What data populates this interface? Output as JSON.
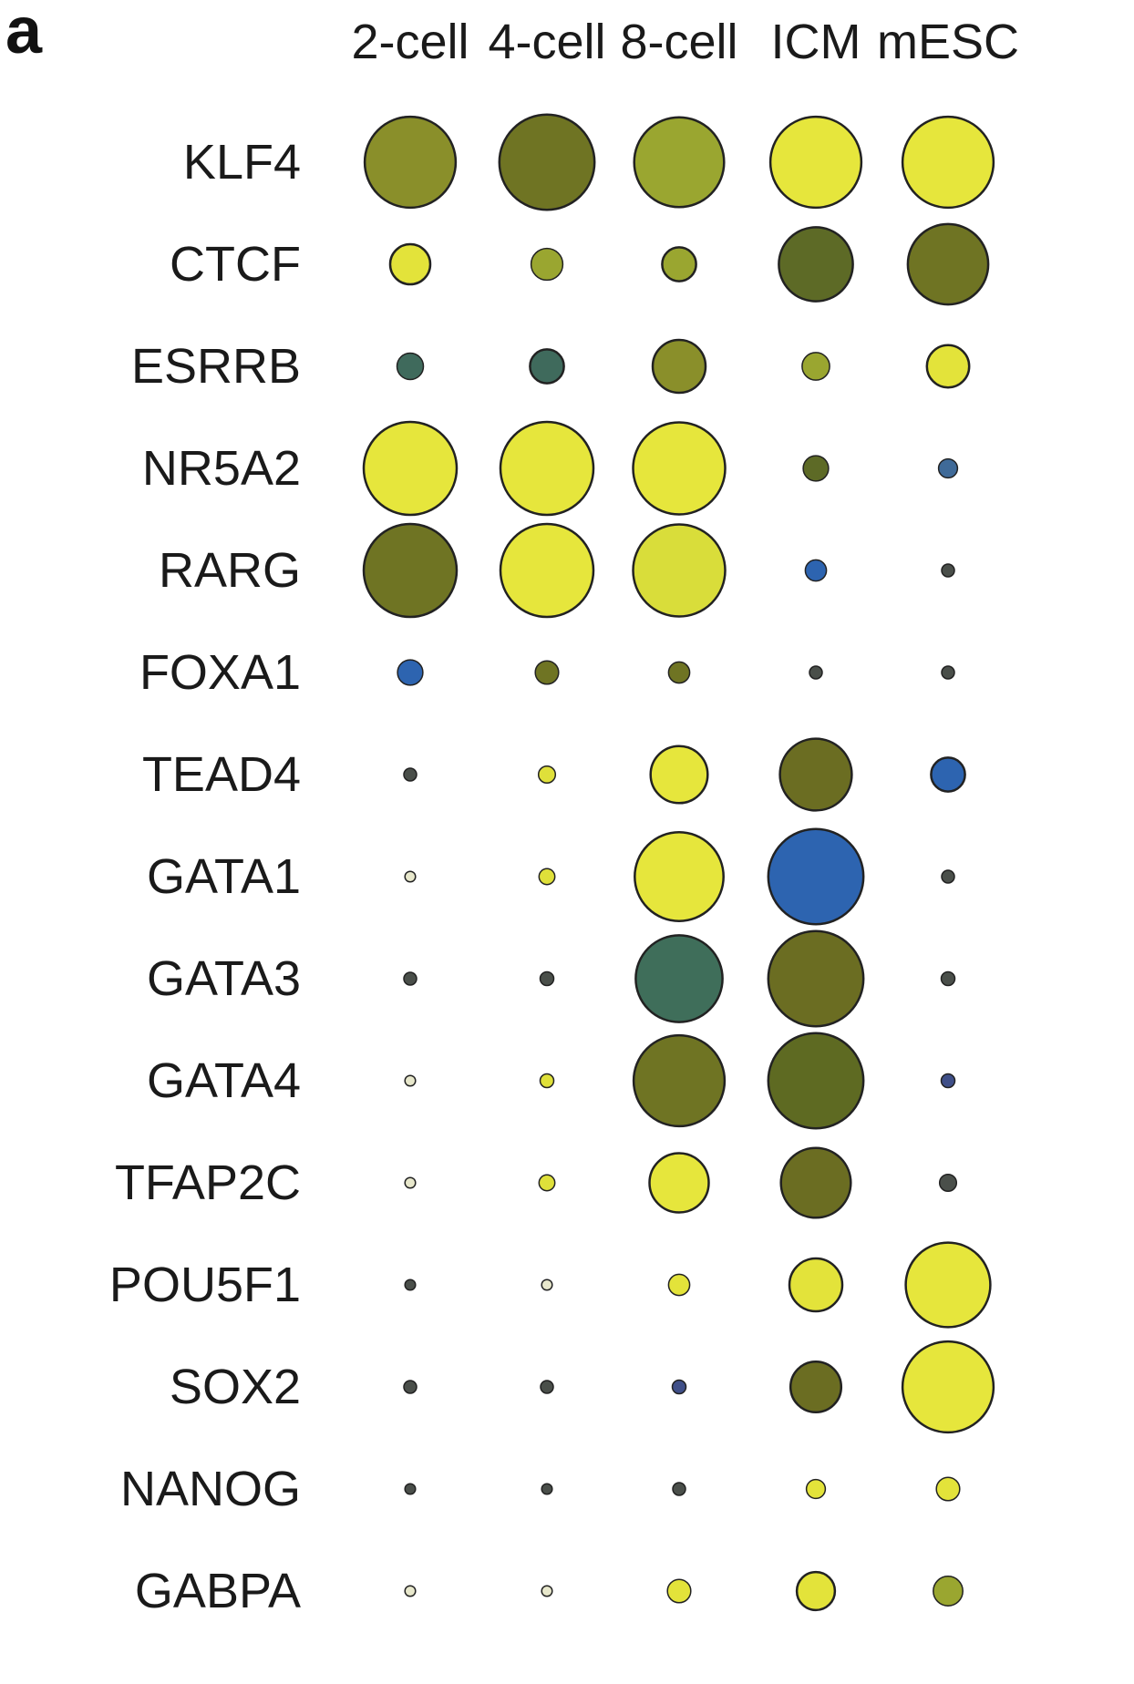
{
  "panel_label": "a",
  "chart_data": {
    "type": "scatter",
    "subtype": "dot-matrix",
    "title": "",
    "xlabel": "",
    "ylabel": "",
    "columns": [
      "2-cell",
      "4-cell",
      "8-cell",
      "ICM",
      "mESC"
    ],
    "rows": [
      "KLF4",
      "CTCF",
      "ESRRB",
      "NR5A2",
      "RARG",
      "FOXA1",
      "TEAD4",
      "GATA1",
      "GATA3",
      "GATA4",
      "TFAP2C",
      "POU5F1",
      "SOX2",
      "NANOG",
      "GABPA"
    ],
    "size_values": [
      [
        0.86,
        0.9,
        0.85,
        0.86,
        0.86
      ],
      [
        0.38,
        0.3,
        0.32,
        0.7,
        0.76
      ],
      [
        0.25,
        0.32,
        0.5,
        0.26,
        0.4
      ],
      [
        0.88,
        0.88,
        0.87,
        0.24,
        0.18
      ],
      [
        0.88,
        0.88,
        0.87,
        0.2,
        0.12
      ],
      [
        0.24,
        0.22,
        0.2,
        0.12,
        0.12
      ],
      [
        0.12,
        0.16,
        0.54,
        0.68,
        0.32
      ],
      [
        0.1,
        0.15,
        0.84,
        0.9,
        0.12
      ],
      [
        0.12,
        0.13,
        0.82,
        0.9,
        0.13
      ],
      [
        0.1,
        0.13,
        0.86,
        0.9,
        0.13
      ],
      [
        0.1,
        0.15,
        0.56,
        0.66,
        0.16
      ],
      [
        0.1,
        0.1,
        0.2,
        0.5,
        0.8
      ],
      [
        0.12,
        0.12,
        0.13,
        0.48,
        0.86
      ],
      [
        0.1,
        0.1,
        0.12,
        0.18,
        0.22
      ],
      [
        0.1,
        0.1,
        0.22,
        0.36,
        0.28
      ]
    ],
    "fill_colors": [
      [
        "#8a8f2a",
        "#6f7423",
        "#9aa630",
        "#e6e63c",
        "#e6e63c"
      ],
      [
        "#e3e33a",
        "#9aa630",
        "#9aa630",
        "#5d6a26",
        "#6f7423"
      ],
      [
        "#3f6a5c",
        "#3f6a5c",
        "#8a8f2a",
        "#9aa630",
        "#e3e33a"
      ],
      [
        "#e6e63c",
        "#e6e63c",
        "#e6e63c",
        "#5d6a26",
        "#3f6a98"
      ],
      [
        "#6f7423",
        "#e6e63c",
        "#d9dd3a",
        "#2d64b0",
        "#4a4f4a"
      ],
      [
        "#2d64b0",
        "#6f7423",
        "#6f7423",
        "#4a4f4a",
        "#4a4f4a"
      ],
      [
        "#4a4f4a",
        "#dfe03a",
        "#e6e63c",
        "#6b6d22",
        "#2d64b0"
      ],
      [
        "#e8e8cc",
        "#dfe03a",
        "#e6e63c",
        "#2d64b0",
        "#4a4f4a"
      ],
      [
        "#4a4f4a",
        "#4a4f4a",
        "#3f6e5a",
        "#6b6d22",
        "#4a4f4a"
      ],
      [
        "#e8e8cc",
        "#dfe03a",
        "#6f7423",
        "#5e6a22",
        "#3f4f88"
      ],
      [
        "#e8e8cc",
        "#dfe03a",
        "#e6e63c",
        "#6b6d22",
        "#4a4f4a"
      ],
      [
        "#4a4f4a",
        "#e8e8cc",
        "#e3e33a",
        "#e3e33a",
        "#e6e63c"
      ],
      [
        "#4a4f4a",
        "#4a4f4a",
        "#3f4f88",
        "#6b6d22",
        "#e6e63c"
      ],
      [
        "#4a4f4a",
        "#4a4f4a",
        "#4a4f4a",
        "#e3e33a",
        "#e3e33a"
      ],
      [
        "#e8e8cc",
        "#e8e8cc",
        "#e3e33a",
        "#e3e33a",
        "#9aa630"
      ]
    ],
    "grid": false,
    "legend": "none"
  }
}
